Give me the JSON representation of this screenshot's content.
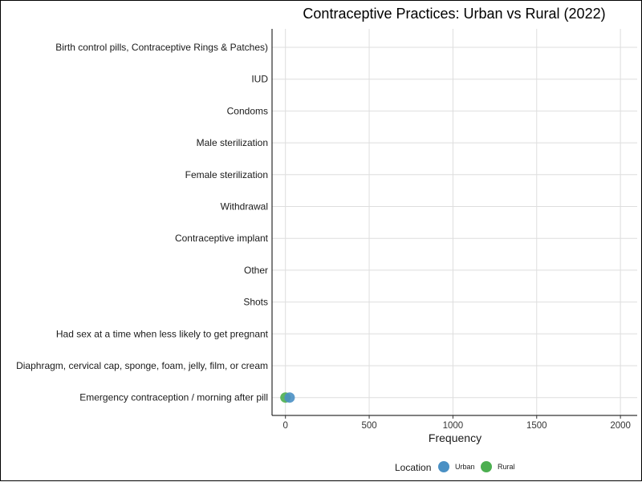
{
  "chart_data": {
    "type": "scatter",
    "title": "Contraceptive Practices: Urban vs Rural (2022)",
    "xlabel": "Frequency",
    "ylabel": "",
    "xlim": [
      -80,
      2100
    ],
    "xticks": [
      0,
      500,
      1000,
      1500,
      2000
    ],
    "x_tick_labels": [
      "0",
      "500",
      "1000",
      "1500",
      "2000"
    ],
    "grid": true,
    "categories": [
      "Birth control pills, Contraceptive Rings & Patches)",
      "IUD",
      "Condoms",
      "Male sterilization",
      "Female sterilization",
      "Withdrawal",
      "Contraceptive implant",
      "Other",
      "Shots",
      "Had sex at a time when less likely to get pregnant",
      "Diaphragm, cervical cap, sponge, foam, jelly, film, or cream",
      "Emergency contraception / morning after pill"
    ],
    "series": [
      {
        "name": "Urban",
        "color": "#4A90C4",
        "points": [
          {
            "category": "Emergency contraception / morning after pill",
            "x": 25
          }
        ]
      },
      {
        "name": "Rural",
        "color": "#4CAF50",
        "points": [
          {
            "category": "Emergency contraception / morning after pill",
            "x": 0
          }
        ]
      }
    ],
    "legend": {
      "title": "Location",
      "position": "bottom",
      "entries": [
        "Urban",
        "Rural"
      ]
    }
  }
}
